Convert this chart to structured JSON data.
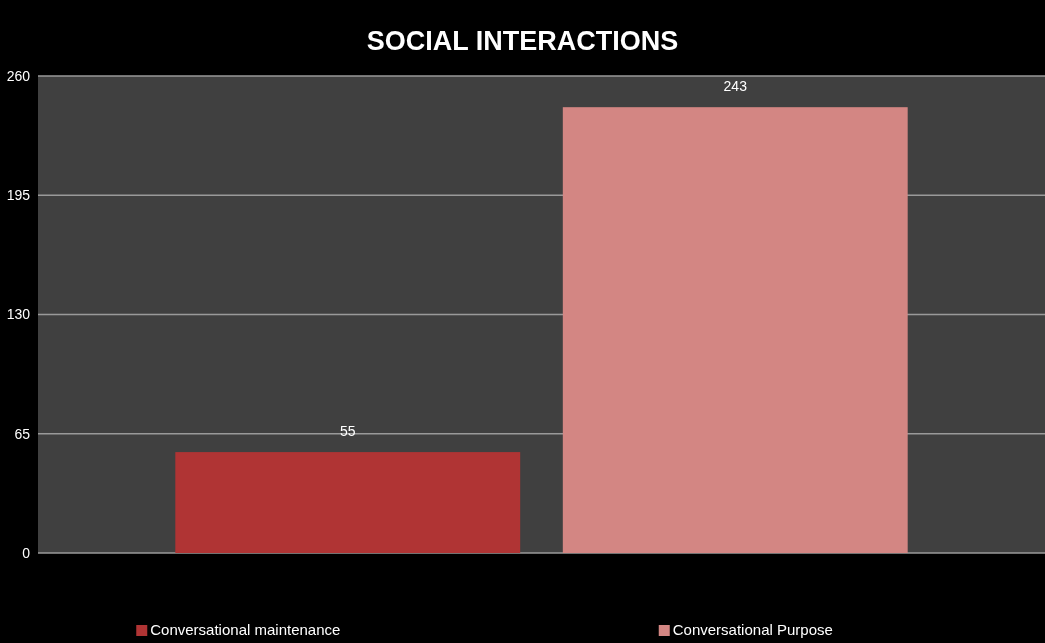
{
  "chart_data": {
    "type": "bar",
    "title": "SOCIAL INTERACTIONS",
    "categories": [
      null
    ],
    "series": [
      {
        "name": "Conversational maintenance",
        "color": "#b03434",
        "values": [
          55
        ]
      },
      {
        "name": "Conversational Purpose",
        "color": "#d38683",
        "values": [
          243
        ]
      }
    ],
    "ylim": [
      0,
      260
    ],
    "yticks": [
      0,
      65,
      130,
      195,
      260
    ],
    "grid": "y",
    "data_labels": true,
    "legend": "bottom"
  }
}
